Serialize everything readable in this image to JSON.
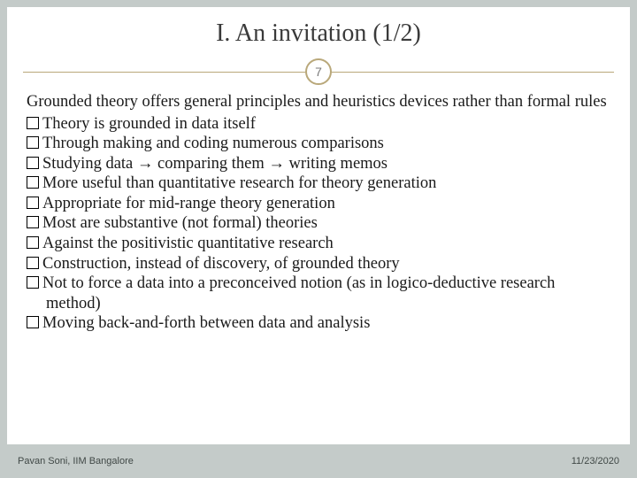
{
  "title": "I. An invitation (1/2)",
  "pageNumber": "7",
  "lead": "Grounded theory offers general principles and heuristics devices rather than formal rules",
  "bullets": [
    "Theory is grounded in data itself",
    "Through making and coding numerous comparisons",
    "Studying data → comparing them → writing memos",
    "More useful than quantitative research for theory generation",
    "Appropriate for mid-range theory generation",
    "Most are substantive (not formal) theories",
    "Against the positivistic quantitative research",
    "Construction, instead of discovery, of grounded theory",
    "Not to force a data into a preconceived notion (as in logico-deductive research method)",
    "Moving back-and-forth between data and analysis"
  ],
  "footer": {
    "author": "Pavan Soni, IIM Bangalore",
    "date": "11/23/2020"
  },
  "colors": {
    "slideBackground": "#c4cbc9",
    "panelBackground": "#ffffff",
    "accent": "#b9a87a",
    "titleColor": "#3a3a3a",
    "bodyColor": "#1a1a1a",
    "footerColor": "#404846"
  },
  "fonts": {
    "titleSize": 28,
    "bodySize": 18.5,
    "footerSize": 11
  }
}
